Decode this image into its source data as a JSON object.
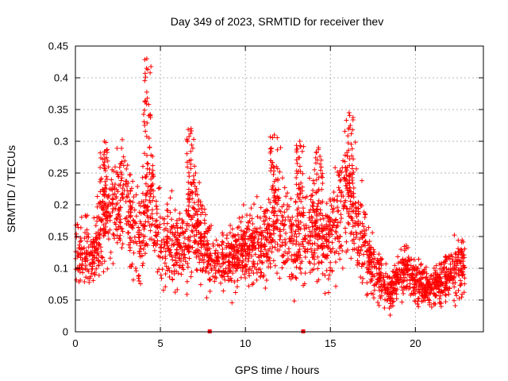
{
  "chart_data": {
    "type": "scatter",
    "title": "Day 349 of 2023, SRMTID for receiver thev",
    "xlabel": "GPS time / hours",
    "ylabel": "SRMTID / TECUs",
    "xlim": [
      0,
      24
    ],
    "ylim": [
      0,
      0.45
    ],
    "xticks": [
      "0",
      "5",
      "10",
      "15",
      "20"
    ],
    "xtick_values": [
      0,
      5,
      10,
      15,
      20
    ],
    "yticks": [
      "0",
      "0.05",
      "0.1",
      "0.15",
      "0.2",
      "0.25",
      "0.3",
      "0.35",
      "0.4",
      "0.45"
    ],
    "ytick_values": [
      0,
      0.05,
      0.1,
      0.15,
      0.2,
      0.25,
      0.3,
      0.35,
      0.4,
      0.45
    ],
    "grid": true,
    "marker": "+",
    "color": "#ff0000",
    "envelope": {
      "description": "approximate typical (median) SRMTID level versus time, in data units",
      "x": [
        0,
        0.5,
        1,
        1.5,
        2,
        2.5,
        3,
        3.5,
        4,
        4.3,
        4.6,
        5,
        5.5,
        6,
        6.5,
        7,
        7.5,
        8,
        8.5,
        9,
        9.5,
        10,
        10.5,
        11,
        11.5,
        12,
        12.5,
        13,
        13.5,
        14,
        14.5,
        15,
        15.5,
        16,
        16.5,
        17,
        17.5,
        18,
        18.5,
        19,
        19.5,
        20,
        20.5,
        21,
        21.5,
        22,
        22.5,
        22.9
      ],
      "y": [
        0.12,
        0.13,
        0.11,
        0.16,
        0.19,
        0.2,
        0.21,
        0.16,
        0.14,
        0.22,
        0.2,
        0.14,
        0.15,
        0.13,
        0.14,
        0.18,
        0.14,
        0.11,
        0.11,
        0.12,
        0.12,
        0.13,
        0.14,
        0.13,
        0.16,
        0.18,
        0.15,
        0.14,
        0.15,
        0.16,
        0.13,
        0.15,
        0.18,
        0.22,
        0.18,
        0.14,
        0.1,
        0.08,
        0.06,
        0.09,
        0.1,
        0.08,
        0.07,
        0.07,
        0.08,
        0.09,
        0.1,
        0.1
      ]
    },
    "peaks": [
      {
        "x": 4.2,
        "y": 0.43
      },
      {
        "x": 6.8,
        "y": 0.32
      },
      {
        "x": 11.7,
        "y": 0.31
      },
      {
        "x": 13.2,
        "y": 0.3
      },
      {
        "x": 14.3,
        "y": 0.29
      },
      {
        "x": 16.1,
        "y": 0.345
      },
      {
        "x": 1.7,
        "y": 0.3
      }
    ],
    "zero_markers": [
      7.9,
      13.4
    ],
    "n_points": 2600
  }
}
